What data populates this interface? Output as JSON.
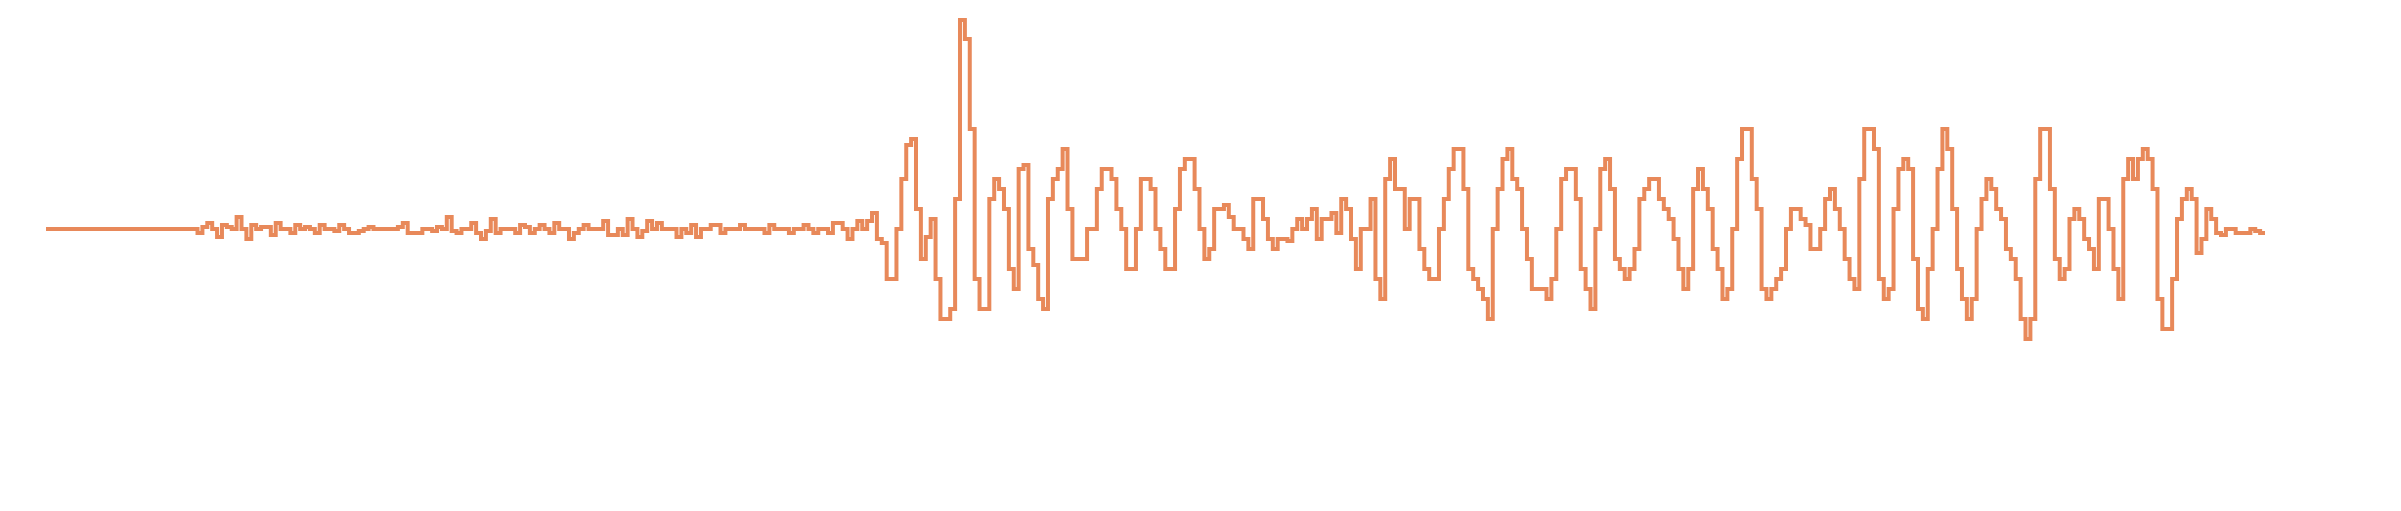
{
  "chart_data": {
    "type": "line",
    "step": true,
    "title": "",
    "xlabel": "",
    "ylabel": "",
    "axes_visible": false,
    "grid": false,
    "legend": "none",
    "xlim": [
      0,
      479
    ],
    "ylim": [
      -1.0,
      1.0
    ],
    "series": [
      {
        "color": "#e8895a",
        "values": [
          0.0,
          0.0,
          0.0,
          0.0,
          0.0,
          0.0,
          0.0,
          0.0,
          0.0,
          0.0,
          0.0,
          0.0,
          0.0,
          0.0,
          0.0,
          0.0,
          0.0,
          0.0,
          0.0,
          0.0,
          0.0,
          0.0,
          0.0,
          0.0,
          0.0,
          0.0,
          0.0,
          0.0,
          0.0,
          0.0,
          0.0,
          -0.02,
          0.01,
          0.03,
          0.0,
          -0.04,
          0.02,
          0.01,
          0.0,
          0.06,
          0.0,
          -0.05,
          0.02,
          0.0,
          0.01,
          0.01,
          -0.03,
          0.03,
          0.0,
          0.0,
          -0.02,
          0.02,
          0.0,
          0.01,
          0.0,
          -0.02,
          0.02,
          0.0,
          0.0,
          -0.01,
          0.02,
          0.0,
          -0.02,
          -0.02,
          -0.01,
          0.0,
          0.01,
          0.0,
          0.0,
          0.0,
          0.0,
          0.0,
          0.01,
          0.03,
          -0.02,
          -0.02,
          -0.02,
          0.0,
          0.0,
          -0.01,
          0.01,
          0.0,
          0.06,
          -0.01,
          -0.02,
          0.0,
          0.0,
          0.03,
          -0.02,
          -0.05,
          -0.01,
          0.05,
          -0.02,
          0.0,
          0.0,
          0.0,
          -0.02,
          0.02,
          0.01,
          -0.02,
          0.0,
          0.02,
          0.0,
          -0.02,
          0.03,
          0.0,
          0.0,
          -0.05,
          -0.02,
          0.0,
          0.02,
          0.0,
          0.0,
          0.0,
          0.04,
          -0.03,
          -0.03,
          0.0,
          -0.03,
          0.05,
          0.0,
          -0.04,
          -0.01,
          0.04,
          0.0,
          0.03,
          0.0,
          0.0,
          0.0,
          -0.04,
          0.0,
          -0.02,
          0.02,
          -0.04,
          0.0,
          0.0,
          0.02,
          0.02,
          -0.02,
          0.0,
          0.0,
          0.0,
          0.02,
          0.0,
          0.0,
          0.0,
          0.0,
          -0.02,
          0.02,
          0.0,
          0.0,
          0.0,
          -0.02,
          0.0,
          0.0,
          0.02,
          0.0,
          -0.02,
          0.0,
          0.0,
          -0.02,
          0.03,
          0.03,
          0.0,
          -0.05,
          0.0,
          0.04,
          0.0,
          0.04,
          0.08,
          -0.05,
          -0.07,
          -0.25,
          -0.25,
          0.0,
          0.25,
          0.42,
          0.45,
          0.1,
          -0.15,
          -0.04,
          0.05,
          -0.25,
          -0.45,
          -0.45,
          -0.4,
          0.15,
          1.05,
          0.95,
          0.5,
          -0.25,
          -0.4,
          -0.4,
          0.15,
          0.25,
          0.2,
          0.1,
          -0.2,
          -0.3,
          0.3,
          0.32,
          -0.1,
          -0.18,
          -0.35,
          -0.4,
          0.15,
          0.25,
          0.3,
          0.4,
          0.1,
          -0.15,
          -0.15,
          -0.15,
          0.0,
          0.0,
          0.2,
          0.3,
          0.3,
          0.25,
          0.1,
          0.0,
          -0.2,
          -0.2,
          0.0,
          0.25,
          0.25,
          0.2,
          0.0,
          -0.1,
          -0.2,
          -0.2,
          0.1,
          0.3,
          0.35,
          0.35,
          0.2,
          0.0,
          -0.15,
          -0.1,
          0.1,
          0.1,
          0.12,
          0.06,
          0.0,
          0.0,
          -0.05,
          -0.1,
          0.15,
          0.15,
          0.05,
          -0.05,
          -0.1,
          -0.05,
          -0.05,
          -0.06,
          0.0,
          0.05,
          0.0,
          0.05,
          0.1,
          -0.05,
          0.05,
          0.05,
          0.08,
          -0.02,
          0.15,
          0.1,
          -0.05,
          -0.2,
          0.0,
          0.0,
          0.15,
          -0.25,
          -0.35,
          0.25,
          0.35,
          0.2,
          0.2,
          0.0,
          0.15,
          0.15,
          -0.1,
          -0.2,
          -0.25,
          -0.25,
          0.0,
          0.15,
          0.3,
          0.4,
          0.4,
          0.2,
          -0.2,
          -0.25,
          -0.3,
          -0.35,
          -0.45,
          0.0,
          0.2,
          0.35,
          0.4,
          0.25,
          0.2,
          0.0,
          -0.15,
          -0.3,
          -0.3,
          -0.3,
          -0.35,
          -0.25,
          0.0,
          0.25,
          0.3,
          0.3,
          0.15,
          -0.2,
          -0.3,
          -0.4,
          0.0,
          0.3,
          0.35,
          0.2,
          -0.15,
          -0.2,
          -0.25,
          -0.2,
          -0.1,
          0.15,
          0.2,
          0.25,
          0.25,
          0.15,
          0.1,
          0.05,
          -0.05,
          -0.2,
          -0.3,
          -0.2,
          0.2,
          0.3,
          0.2,
          0.1,
          -0.1,
          -0.2,
          -0.35,
          -0.3,
          0.0,
          0.35,
          0.5,
          0.5,
          0.25,
          0.1,
          -0.3,
          -0.35,
          -0.3,
          -0.25,
          -0.2,
          0.0,
          0.1,
          0.1,
          0.05,
          0.02,
          -0.1,
          -0.1,
          0.0,
          0.15,
          0.2,
          0.1,
          0.0,
          -0.15,
          -0.25,
          -0.3,
          0.25,
          0.5,
          0.5,
          0.4,
          -0.25,
          -0.35,
          -0.3,
          0.1,
          0.3,
          0.35,
          0.3,
          -0.15,
          -0.4,
          -0.45,
          -0.2,
          0.0,
          0.3,
          0.5,
          0.4,
          0.1,
          -0.2,
          -0.35,
          -0.45,
          -0.35,
          0.0,
          0.15,
          0.25,
          0.2,
          0.1,
          0.05,
          -0.1,
          -0.15,
          -0.25,
          -0.45,
          -0.55,
          -0.45,
          0.25,
          0.5,
          0.5,
          0.2,
          -0.15,
          -0.25,
          -0.2,
          0.05,
          0.1,
          0.05,
          -0.05,
          -0.1,
          -0.2,
          0.15,
          0.15,
          0.0,
          -0.2,
          -0.35,
          0.25,
          0.35,
          0.25,
          0.35,
          0.4,
          0.35,
          0.2,
          -0.35,
          -0.5,
          -0.5,
          -0.25,
          0.05,
          0.15,
          0.2,
          0.15,
          -0.12,
          -0.05,
          0.1,
          0.05,
          -0.02,
          -0.03,
          0.0,
          0.0,
          -0.02,
          -0.02,
          -0.02,
          0.0,
          -0.01,
          -0.02
        ]
      }
    ]
  }
}
